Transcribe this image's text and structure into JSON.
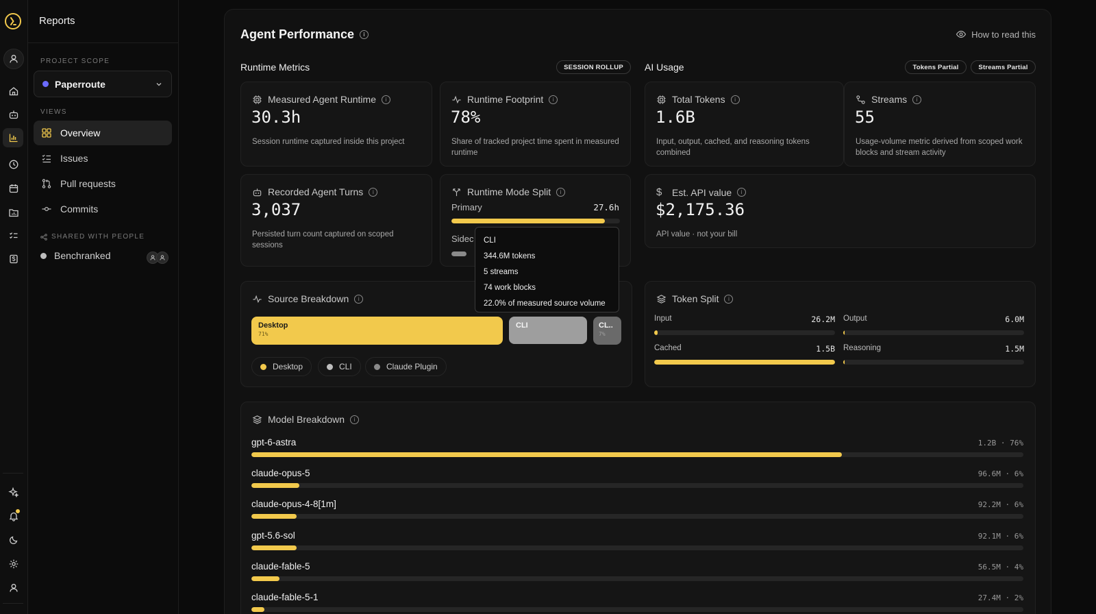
{
  "sidebar": {
    "title": "Reports",
    "project_scope_caption": "PROJECT SCOPE",
    "project_name": "Paperroute",
    "views_caption": "VIEWS",
    "views": [
      {
        "label": "Overview",
        "icon": "grid-icon"
      },
      {
        "label": "Issues",
        "icon": "list-check-icon"
      },
      {
        "label": "Pull requests",
        "icon": "git-pull-request-icon"
      },
      {
        "label": "Commits",
        "icon": "git-commit-icon"
      }
    ],
    "shared_caption": "SHARED WITH PEOPLE",
    "shared_items": [
      {
        "label": "Benchranked"
      }
    ]
  },
  "header": {
    "title": "Agent Performance",
    "how_to": "How to read this"
  },
  "runtime": {
    "heading": "Runtime Metrics",
    "badge": "SESSION ROLLUP",
    "measured": {
      "title": "Measured Agent Runtime",
      "value": "30.3h",
      "desc": "Session runtime captured inside this project"
    },
    "footprint": {
      "title": "Runtime Footprint",
      "value": "78%",
      "desc": "Share of tracked project time spent in measured runtime"
    },
    "turns": {
      "title": "Recorded Agent Turns",
      "value": "3,037",
      "desc": "Persisted turn count captured on scoped sessions"
    },
    "mode_split": {
      "title": "Runtime Mode Split",
      "primary_label": "Primary",
      "primary_value": "27.6h",
      "primary_fraction": 0.91,
      "secondary_label": "Sidec",
      "secondary_fraction": 0.09
    }
  },
  "ai_usage": {
    "heading": "AI Usage",
    "badges": [
      "Tokens Partial",
      "Streams Partial"
    ],
    "tokens": {
      "title": "Total Tokens",
      "value": "1.6B",
      "desc": "Input, output, cached, and reasoning tokens combined"
    },
    "streams": {
      "title": "Streams",
      "value": "55",
      "desc": "Usage-volume metric derived from scoped work blocks and stream activity"
    },
    "api": {
      "title": "Est. API value",
      "value": "$2,175.36",
      "desc": "API value · not your bill"
    }
  },
  "tooltip": {
    "title": "CLI",
    "lines": [
      "344.6M tokens",
      "5 streams",
      "74 work blocks",
      "22.0% of measured source volume"
    ]
  },
  "source": {
    "title": "Source Breakdown",
    "segments": [
      {
        "label": "Desktop",
        "pct": "71%",
        "fraction": 0.71,
        "color": "#f2c94c"
      },
      {
        "label": "CLI",
        "pct": "",
        "fraction": 0.22,
        "color": "#9e9e9e"
      },
      {
        "label": "CL..",
        "pct": "7%",
        "fraction": 0.07,
        "color": "#6a6a6a"
      }
    ],
    "legend": [
      {
        "label": "Desktop",
        "color": "#f2c94c"
      },
      {
        "label": "CLI",
        "color": "#bdbdbd"
      },
      {
        "label": "Claude Plugin",
        "color": "#8a8a8a"
      }
    ]
  },
  "token_split": {
    "title": "Token Split",
    "items": [
      {
        "label": "Input",
        "value": "26.2M",
        "fraction": 0.02
      },
      {
        "label": "Output",
        "value": "6.0M",
        "fraction": 0.004
      },
      {
        "label": "Cached",
        "value": "1.5B",
        "fraction": 1.0
      },
      {
        "label": "Reasoning",
        "value": "1.5M",
        "fraction": 0.002
      }
    ]
  },
  "models": {
    "title": "Model Breakdown",
    "rows": [
      {
        "name": "gpt-6-astra",
        "value": "1.2B · 76%",
        "fraction": 0.765
      },
      {
        "name": "claude-opus-5",
        "value": "96.6M · 6%",
        "fraction": 0.062
      },
      {
        "name": "claude-opus-4-8[1m]",
        "value": "92.2M · 6%",
        "fraction": 0.059
      },
      {
        "name": "gpt-5.6-sol",
        "value": "92.1M · 6%",
        "fraction": 0.059
      },
      {
        "name": "claude-fable-5",
        "value": "56.5M · 4%",
        "fraction": 0.036
      },
      {
        "name": "claude-fable-5-1",
        "value": "27.4M · 2%",
        "fraction": 0.017
      }
    ]
  },
  "colors": {
    "accent": "#f2c94c",
    "bg": "#0b0b0b",
    "card": "#151515"
  }
}
